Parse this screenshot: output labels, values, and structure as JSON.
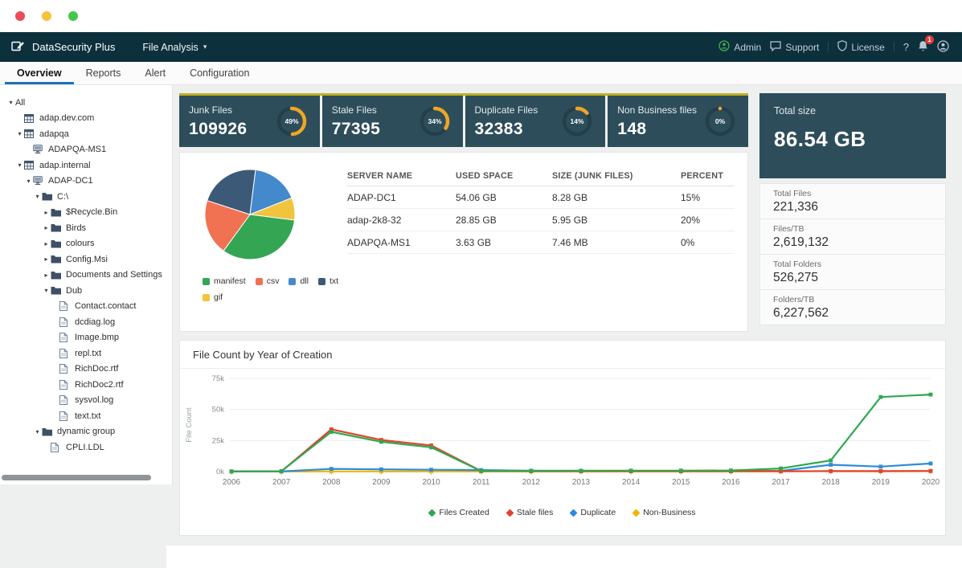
{
  "header": {
    "app_name": "DataSecurity Plus",
    "menu": {
      "label": "File Analysis",
      "caret": "▾"
    },
    "right": {
      "admin": "Admin",
      "support": "Support",
      "license": "License",
      "help": "?",
      "notification_count": "1"
    }
  },
  "tabs": [
    {
      "label": "Overview",
      "active": true
    },
    {
      "label": "Reports",
      "active": false
    },
    {
      "label": "Alert",
      "active": false
    },
    {
      "label": "Configuration",
      "active": false
    }
  ],
  "sidebar": {
    "items": [
      {
        "label": "All",
        "level": 0,
        "arrow": "down",
        "icon": null
      },
      {
        "label": "adap.dev.com",
        "level": 1,
        "arrow": null,
        "icon": "domain"
      },
      {
        "label": "adapqa",
        "level": 1,
        "arrow": "down",
        "icon": "domain"
      },
      {
        "label": "ADAPQA-MS1",
        "level": 2,
        "arrow": null,
        "icon": "server"
      },
      {
        "label": "adap.internal",
        "level": 1,
        "arrow": "down",
        "icon": "domain"
      },
      {
        "label": "ADAP-DC1",
        "level": 2,
        "arrow": "down",
        "icon": "server"
      },
      {
        "label": "C:\\",
        "level": 3,
        "arrow": "down",
        "icon": "folder"
      },
      {
        "label": "$Recycle.Bin",
        "level": 4,
        "arrow": "right",
        "icon": "folder"
      },
      {
        "label": "Birds",
        "level": 4,
        "arrow": "right",
        "icon": "folder"
      },
      {
        "label": "colours",
        "level": 4,
        "arrow": "right",
        "icon": "folder"
      },
      {
        "label": "Config.Msi",
        "level": 4,
        "arrow": "right",
        "icon": "folder"
      },
      {
        "label": "Documents and Settings",
        "level": 4,
        "arrow": "right",
        "icon": "folder"
      },
      {
        "label": "Dub",
        "level": 4,
        "arrow": "down",
        "icon": "folder"
      },
      {
        "label": "Contact.contact",
        "level": 5,
        "arrow": null,
        "icon": "file"
      },
      {
        "label": "dcdiag.log",
        "level": 5,
        "arrow": null,
        "icon": "file"
      },
      {
        "label": "Image.bmp",
        "level": 5,
        "arrow": null,
        "icon": "file"
      },
      {
        "label": "repl.txt",
        "level": 5,
        "arrow": null,
        "icon": "file"
      },
      {
        "label": "RichDoc.rtf",
        "level": 5,
        "arrow": null,
        "icon": "file"
      },
      {
        "label": "RichDoc2.rtf",
        "level": 5,
        "arrow": null,
        "icon": "file"
      },
      {
        "label": "sysvol.log",
        "level": 5,
        "arrow": null,
        "icon": "file"
      },
      {
        "label": "text.txt",
        "level": 5,
        "arrow": null,
        "icon": "file"
      },
      {
        "label": "dynamic group",
        "level": 3,
        "arrow": "down",
        "icon": "folder"
      },
      {
        "label": "CPLI.LDL",
        "level": 4,
        "arrow": null,
        "icon": "file"
      }
    ]
  },
  "stat_cards": [
    {
      "title": "Junk Files",
      "value": "109926",
      "percent": 49,
      "percent_label": "49%"
    },
    {
      "title": "Stale Files",
      "value": "77395",
      "percent": 34,
      "percent_label": "34%"
    },
    {
      "title": "Duplicate Files",
      "value": "32383",
      "percent": 14,
      "percent_label": "14%"
    },
    {
      "title": "Non Business files",
      "value": "148",
      "percent": 0,
      "percent_label": "0%"
    }
  ],
  "totals": {
    "title": "Total size",
    "size": "86.54 GB",
    "rows": [
      {
        "label": "Total Files",
        "value": "221,336"
      },
      {
        "label": "Files/TB",
        "value": "2,619,132"
      },
      {
        "label": "Total Folders",
        "value": "526,275"
      },
      {
        "label": "Folders/TB",
        "value": "6,227,562"
      }
    ]
  },
  "overview": {
    "table": {
      "headers": [
        "SERVER NAME",
        "USED SPACE",
        "SIZE (JUNK FILES)",
        "PERCENT"
      ],
      "rows": [
        [
          "ADAP-DC1",
          "54.06 GB",
          "8.28 GB",
          "15%"
        ],
        [
          "adap-2k8-32",
          "28.85 GB",
          "5.95 GB",
          "20%"
        ],
        [
          "ADAPQA-MS1",
          "3.63 GB",
          "7.46 MB",
          "0%"
        ]
      ]
    }
  },
  "chart_data": [
    {
      "type": "pie",
      "title": "",
      "start_angle": -72,
      "slices": [
        {
          "label": "txt",
          "value": 22,
          "color": "#3c5a78"
        },
        {
          "label": "dll",
          "value": 17,
          "color": "#4489cc"
        },
        {
          "label": "gif",
          "value": 8,
          "color": "#f2c33c"
        },
        {
          "label": "manifest",
          "value": 33,
          "color": "#33a553"
        },
        {
          "label": "csv",
          "value": 20,
          "color": "#f17252"
        }
      ],
      "legend_order": [
        "manifest",
        "csv",
        "dll",
        "txt",
        "gif"
      ],
      "legend_position": "bottom"
    },
    {
      "type": "line",
      "title": "File Count by Year of Creation",
      "xlabel": "",
      "ylabel": "File Count",
      "x": [
        2006,
        2007,
        2008,
        2009,
        2010,
        2011,
        2012,
        2013,
        2014,
        2015,
        2016,
        2017,
        2018,
        2019,
        2020
      ],
      "ylim": [
        0,
        75000
      ],
      "yticks": [
        "0k",
        "25k",
        "50k",
        "75k"
      ],
      "grid": true,
      "legend_position": "bottom",
      "series": [
        {
          "name": "Files Created",
          "color": "#2fa84f",
          "values": [
            200,
            300,
            32000,
            24000,
            19500,
            500,
            600,
            700,
            800,
            800,
            900,
            2500,
            9000,
            60000,
            62000
          ]
        },
        {
          "name": "Stale files",
          "color": "#e2422e",
          "values": [
            100,
            200,
            34000,
            25500,
            21000,
            400,
            300,
            300,
            300,
            300,
            300,
            300,
            400,
            400,
            500
          ]
        },
        {
          "name": "Duplicate",
          "color": "#2e8bda",
          "values": [
            100,
            150,
            2200,
            1800,
            1500,
            1200,
            700,
            600,
            500,
            500,
            500,
            600,
            5500,
            4000,
            6500
          ]
        },
        {
          "name": "Non-Business",
          "color": "#f0b400",
          "values": [
            50,
            50,
            100,
            100,
            100,
            100,
            100,
            100,
            100,
            100,
            100,
            100,
            300,
            200,
            300
          ]
        }
      ]
    }
  ]
}
